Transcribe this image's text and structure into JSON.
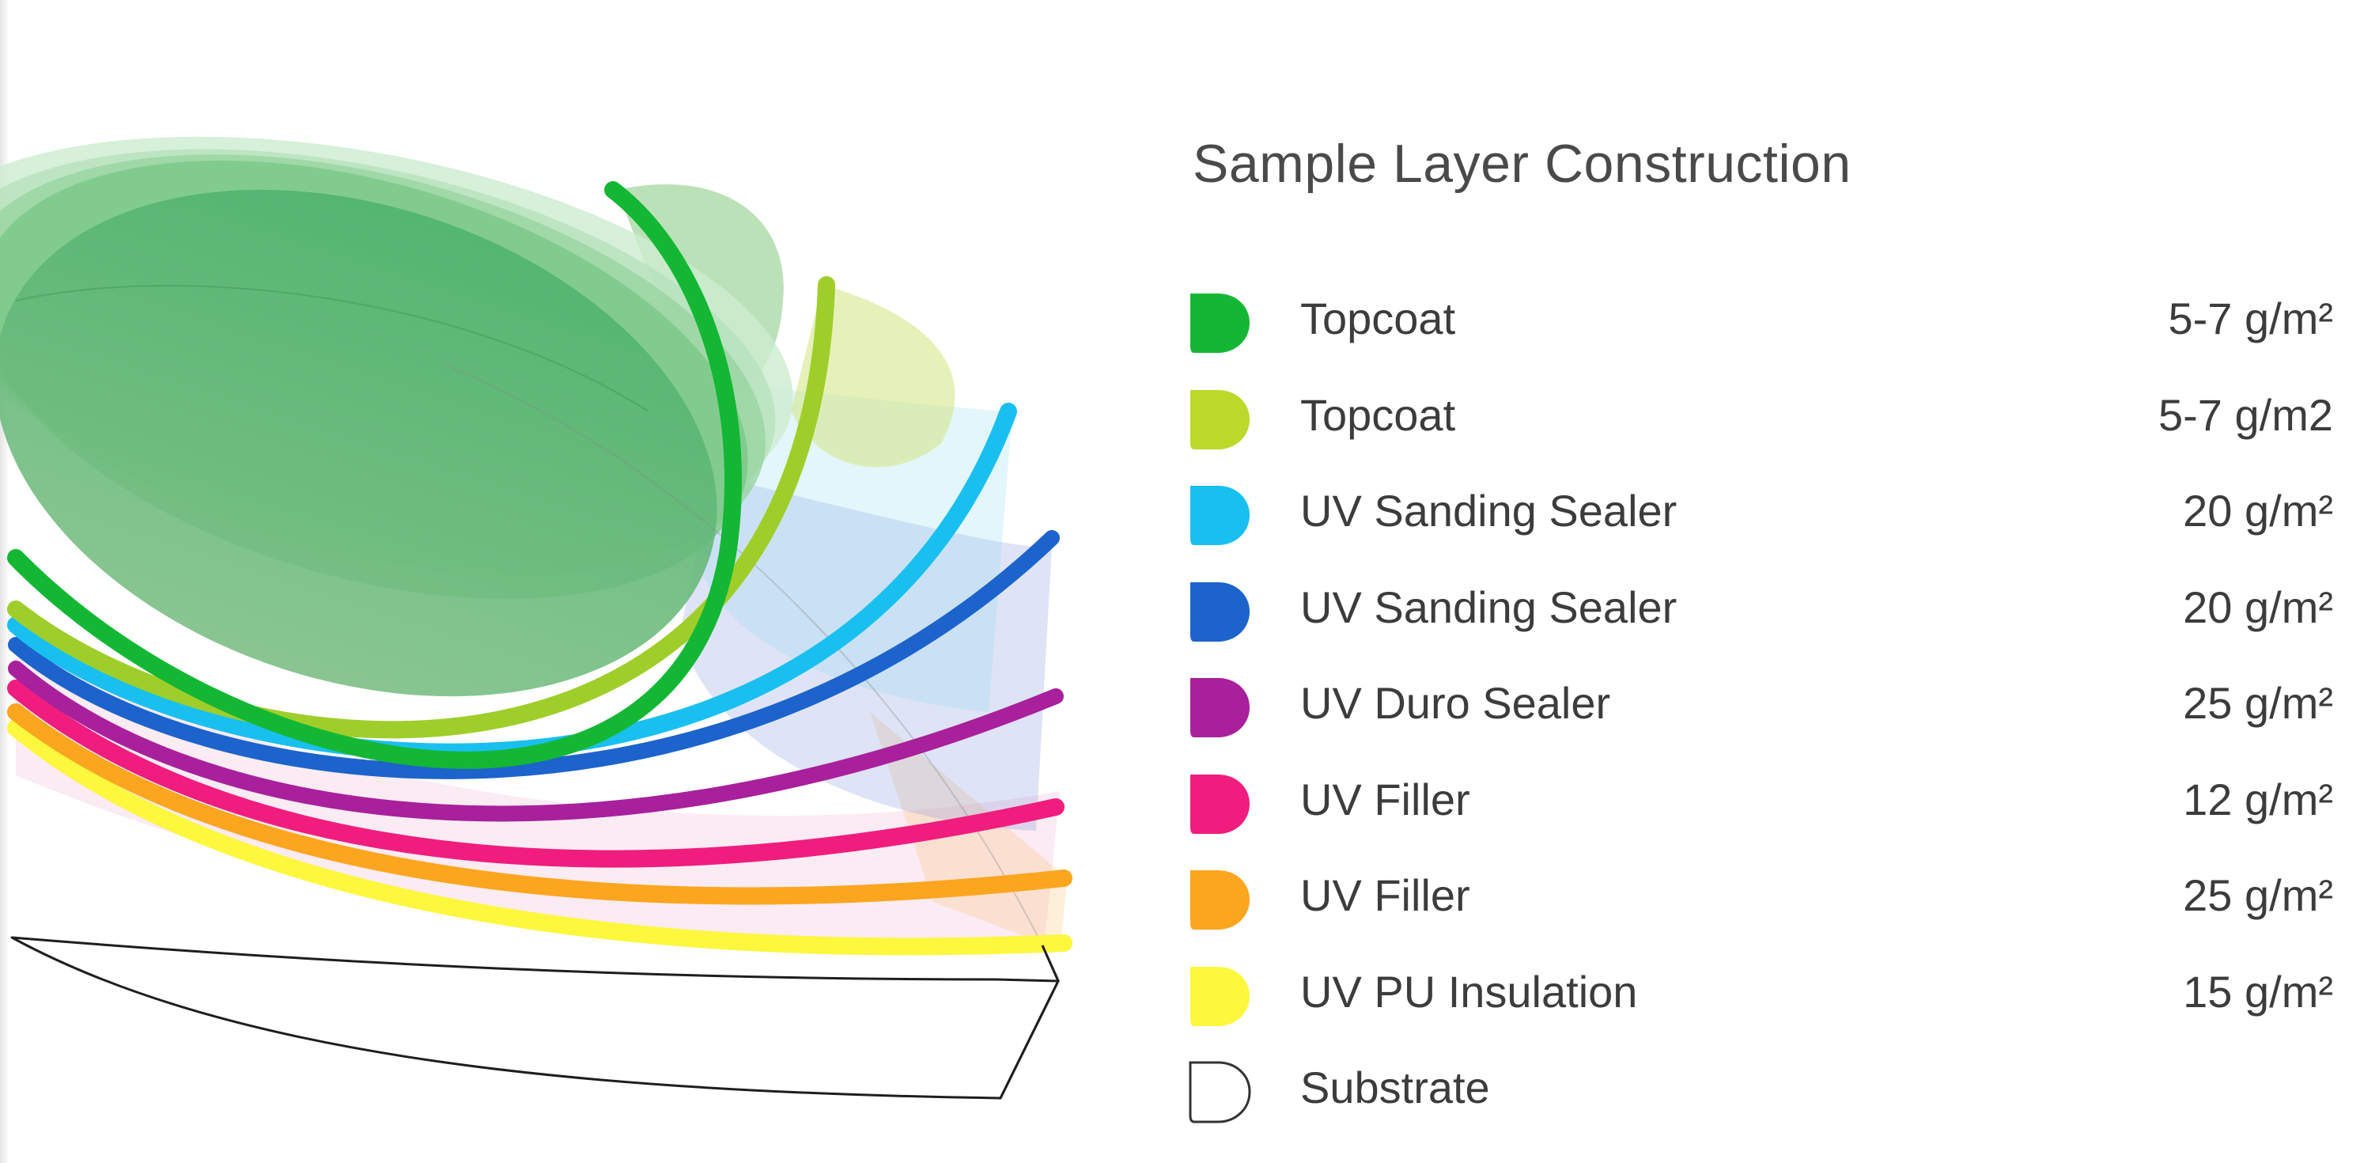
{
  "legend": {
    "title": "Sample Layer Construction",
    "items": [
      {
        "name": "Topcoat",
        "amount": "5-7 g/m²",
        "color": "#13b734"
      },
      {
        "name": "Topcoat",
        "amount": "5-7 g/m2",
        "color": "#bcd82a"
      },
      {
        "name": "UV Sanding Sealer",
        "amount": "20 g/m²",
        "color": "#19c0ef"
      },
      {
        "name": "UV Sanding Sealer",
        "amount": "20 g/m²",
        "color": "#1c63cc"
      },
      {
        "name": "UV Duro Sealer",
        "amount": "25 g/m²",
        "color": "#a8209b"
      },
      {
        "name": "UV Filler",
        "amount": "12 g/m²",
        "color": "#f01d7e"
      },
      {
        "name": "UV Filler",
        "amount": "25 g/m²",
        "color": "#fca51f"
      },
      {
        "name": "UV PU Insulation",
        "amount": "15 g/m²",
        "color": "#fdf73e"
      },
      {
        "name": "Substrate",
        "amount": "",
        "color": "#ffffff"
      }
    ]
  }
}
